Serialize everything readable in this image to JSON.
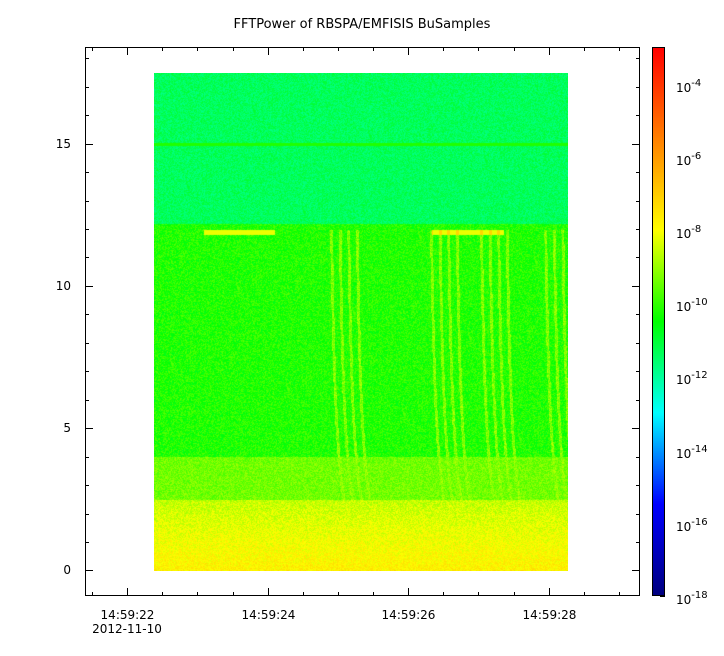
{
  "chart_data": {
    "type": "heatmap",
    "title": "FFTPower of RBSPA/EMFISIS  BuSamples",
    "x": {
      "ticks": [
        "14:59:22",
        "14:59:24",
        "14:59:26",
        "14:59:28"
      ],
      "tick_sublabel": "2012-11-10",
      "range": [
        "14:59:21.4",
        "14:59:29.3"
      ],
      "data_range": [
        "14:59:22.4",
        "14:59:28.2"
      ]
    },
    "y": {
      "ticks": [
        "0",
        "5",
        "10",
        "15"
      ],
      "range": [
        -0.9,
        18.4
      ],
      "data_range": [
        0,
        17.5
      ]
    },
    "z": {
      "scale": "log",
      "range": [
        1e-18,
        0.001
      ],
      "colorbar_ticks": [
        {
          "base": "10",
          "exp": "-4"
        },
        {
          "base": "10",
          "exp": "-6"
        },
        {
          "base": "10",
          "exp": "-8"
        },
        {
          "base": "10",
          "exp": "-10"
        },
        {
          "base": "10",
          "exp": "-12"
        },
        {
          "base": "10",
          "exp": "-14"
        },
        {
          "base": "10",
          "exp": "-16"
        },
        {
          "base": "10",
          "exp": "-18"
        }
      ],
      "colormap": [
        "#00007f",
        "#0000ff",
        "#00ffff",
        "#00ff00",
        "#ffff00",
        "#ff8000",
        "#ff0000"
      ]
    },
    "features": {
      "low_frequency_band_y": [
        0,
        2.5
      ],
      "high_frequency_band_y": [
        12.2,
        17.5
      ],
      "horizontal_line_y": 15,
      "short_tone_y": 11.9,
      "dispersed_traces_x": [
        "14:59:24.9",
        "14:59:26.3",
        "14:59:27.0",
        "14:59:27.9"
      ]
    }
  }
}
